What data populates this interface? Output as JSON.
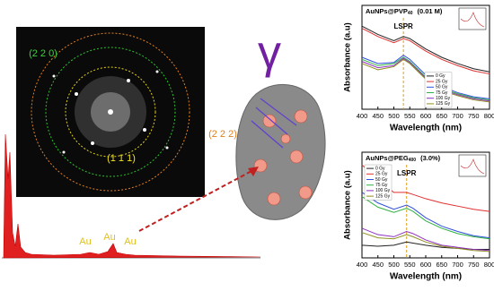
{
  "chart_data": [
    {
      "type": "line",
      "title": "AuNPs@PVP",
      "title_sub": "40",
      "subtitle": "(0.01 M)",
      "x_label": "Wavelength (nm)",
      "y_label": "Absorbance (a.u)",
      "xlim": [
        400,
        800
      ],
      "xticks": [
        400,
        450,
        500,
        550,
        600,
        650,
        700,
        750,
        800
      ],
      "ylim": [
        0,
        1
      ],
      "annotation": "LSPR",
      "vline": 530,
      "legend": "lower center",
      "x": [
        400,
        450,
        500,
        530,
        550,
        600,
        650,
        700,
        750,
        800
      ],
      "series": [
        {
          "name": "0 Gy",
          "color": "#222222",
          "values": [
            0.8,
            0.72,
            0.66,
            0.7,
            0.68,
            0.58,
            0.5,
            0.44,
            0.39,
            0.36
          ]
        },
        {
          "name": "25 Gy",
          "color": "#e03030",
          "values": [
            0.78,
            0.7,
            0.64,
            0.68,
            0.66,
            0.56,
            0.48,
            0.42,
            0.37,
            0.34
          ]
        },
        {
          "name": "50 Gy",
          "color": "#3050e0",
          "values": [
            0.5,
            0.44,
            0.45,
            0.52,
            0.48,
            0.33,
            0.22,
            0.16,
            0.12,
            0.1
          ]
        },
        {
          "name": "75 Gy",
          "color": "#30b040",
          "values": [
            0.48,
            0.42,
            0.44,
            0.5,
            0.46,
            0.31,
            0.2,
            0.15,
            0.11,
            0.09
          ]
        },
        {
          "name": "100 Gy",
          "color": "#9030c0",
          "values": [
            0.46,
            0.4,
            0.42,
            0.49,
            0.45,
            0.3,
            0.19,
            0.14,
            0.1,
            0.08
          ]
        },
        {
          "name": "125 Gy",
          "color": "#909020",
          "values": [
            0.44,
            0.38,
            0.41,
            0.48,
            0.44,
            0.29,
            0.18,
            0.13,
            0.09,
            0.07
          ]
        }
      ]
    },
    {
      "type": "line",
      "title": "AuNPs@PEG",
      "title_sub": "400",
      "subtitle": "(3.0%)",
      "x_label": "Wavelength (nm)",
      "y_label": "Absorbance (a.u)",
      "xlim": [
        400,
        800
      ],
      "xticks": [
        400,
        450,
        500,
        550,
        600,
        650,
        700,
        750,
        800
      ],
      "ylim": [
        0,
        1
      ],
      "annotation": "LSPR",
      "vline": 540,
      "legend": "upper left",
      "x": [
        400,
        450,
        500,
        540,
        560,
        600,
        650,
        700,
        750,
        800
      ],
      "series": [
        {
          "name": "0 Gy",
          "color": "#222222",
          "values": [
            0.12,
            0.11,
            0.12,
            0.15,
            0.14,
            0.12,
            0.1,
            0.09,
            0.08,
            0.08
          ]
        },
        {
          "name": "25 Gy",
          "color": "#e03030",
          "values": [
            0.88,
            0.74,
            0.62,
            0.62,
            0.6,
            0.56,
            0.52,
            0.49,
            0.46,
            0.44
          ]
        },
        {
          "name": "50 Gy",
          "color": "#3050e0",
          "values": [
            0.62,
            0.52,
            0.46,
            0.5,
            0.47,
            0.38,
            0.3,
            0.25,
            0.21,
            0.19
          ]
        },
        {
          "name": "75 Gy",
          "color": "#30b040",
          "values": [
            0.58,
            0.48,
            0.43,
            0.47,
            0.44,
            0.35,
            0.28,
            0.23,
            0.2,
            0.18
          ]
        },
        {
          "name": "100 Gy",
          "color": "#9030c0",
          "values": [
            0.28,
            0.22,
            0.2,
            0.25,
            0.23,
            0.17,
            0.12,
            0.1,
            0.08,
            0.07
          ]
        },
        {
          "name": "125 Gy",
          "color": "#909020",
          "values": [
            0.24,
            0.19,
            0.18,
            0.22,
            0.2,
            0.15,
            0.11,
            0.09,
            0.07,
            0.06
          ]
        }
      ]
    }
  ],
  "fft_labels": [
    "(2 2 0)",
    "(1 1 1)",
    "(2 2 2)"
  ],
  "eds_labels": [
    "Au",
    "Au",
    "Au"
  ],
  "gamma": "γ"
}
